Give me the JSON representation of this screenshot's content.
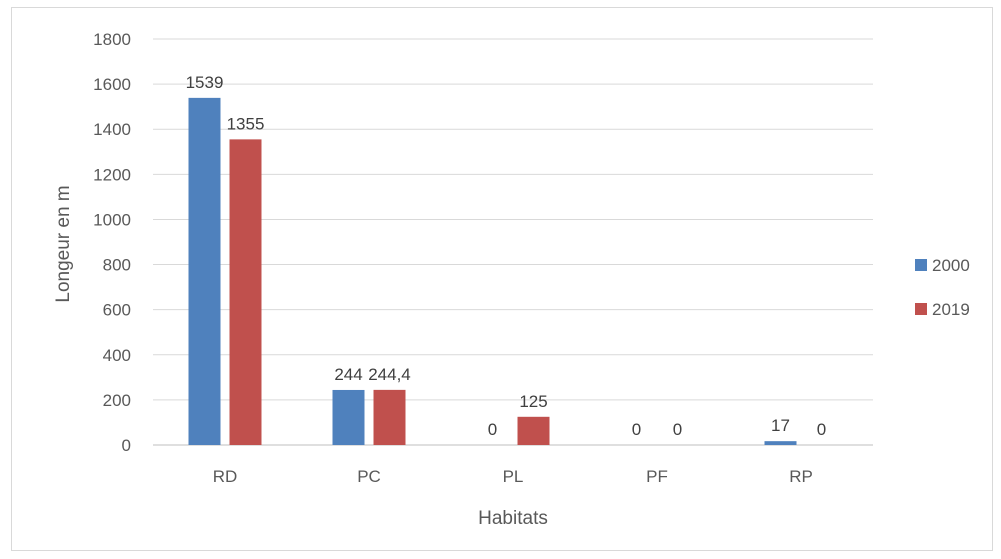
{
  "chart_data": {
    "type": "bar",
    "title": "",
    "xlabel": "Habitats",
    "ylabel": "Longeur en m",
    "categories": [
      "RD",
      "PC",
      "PL",
      "PF",
      "RP"
    ],
    "series": [
      {
        "name": "2000",
        "color": "#4f81bd",
        "values": [
          1539,
          244,
          0,
          0,
          17
        ],
        "labels": [
          "1539",
          "244",
          "0",
          "0",
          "17"
        ]
      },
      {
        "name": "2019",
        "color": "#c0504d",
        "values": [
          1355,
          244.4,
          125,
          0,
          0
        ],
        "labels": [
          "1355",
          "244,4",
          "125",
          "0",
          "0"
        ]
      }
    ],
    "ylim": [
      0,
      1800
    ],
    "yticks": [
      0,
      200,
      400,
      600,
      800,
      1000,
      1200,
      1400,
      1600,
      1800
    ],
    "grid": true,
    "legend": "right"
  }
}
